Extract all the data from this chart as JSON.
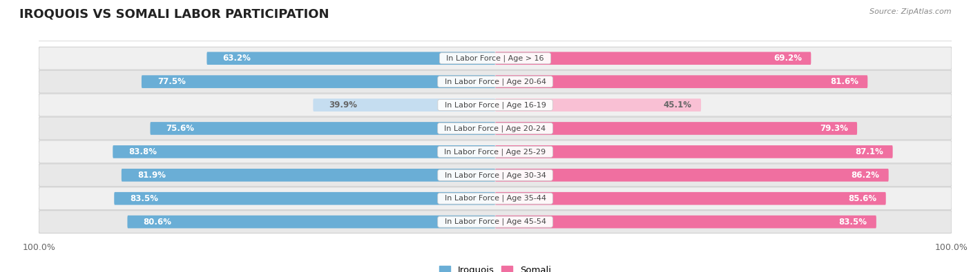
{
  "title": "IROQUOIS VS SOMALI LABOR PARTICIPATION",
  "source": "Source: ZipAtlas.com",
  "categories": [
    "In Labor Force | Age > 16",
    "In Labor Force | Age 20-64",
    "In Labor Force | Age 16-19",
    "In Labor Force | Age 20-24",
    "In Labor Force | Age 25-29",
    "In Labor Force | Age 30-34",
    "In Labor Force | Age 35-44",
    "In Labor Force | Age 45-54"
  ],
  "iroquois": [
    63.2,
    77.5,
    39.9,
    75.6,
    83.8,
    81.9,
    83.5,
    80.6
  ],
  "somali": [
    69.2,
    81.6,
    45.1,
    79.3,
    87.1,
    86.2,
    85.6,
    83.5
  ],
  "iroquois_color": "#6aaed6",
  "iroquois_color_light": "#c5ddf0",
  "somali_color": "#f06fa0",
  "somali_color_light": "#f9c0d4",
  "row_bg_color_odd": "#f0f0f0",
  "row_bg_color_even": "#e8e8e8",
  "row_border_color": "#d0d0d0",
  "label_white": "#ffffff",
  "label_dark": "#666666",
  "cat_label_color": "#444444",
  "axis_label": "100.0%",
  "legend_iroquois": "Iroquois",
  "legend_somali": "Somali",
  "max_val": 100.0,
  "title_fontsize": 13,
  "bar_height": 0.55,
  "value_fontsize": 8.5,
  "cat_fontsize": 8.0
}
